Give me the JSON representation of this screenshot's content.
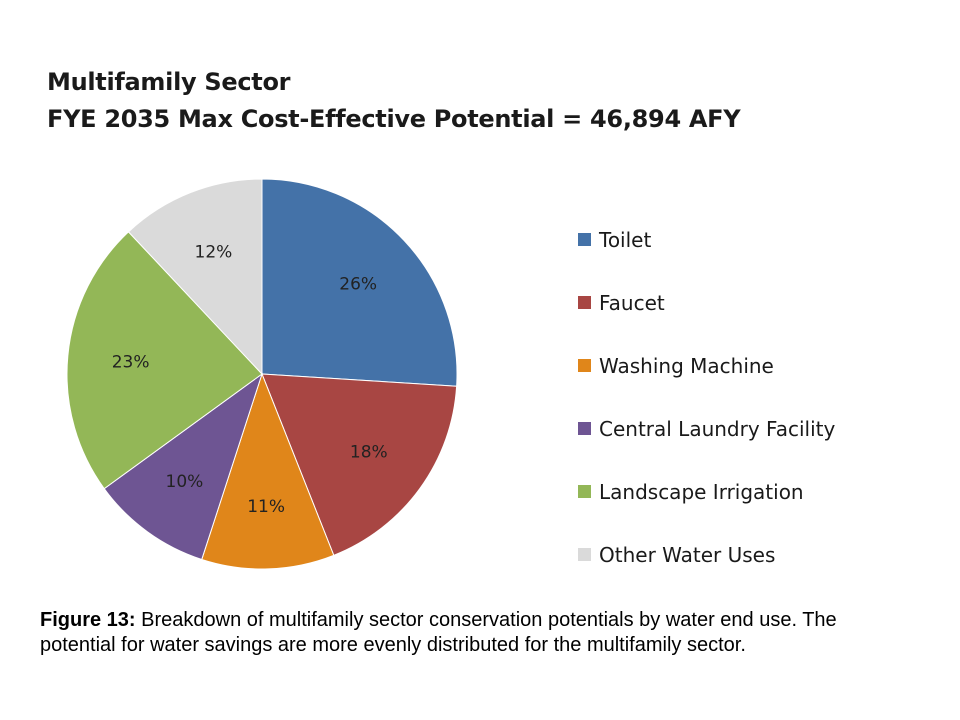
{
  "chart_data": {
    "type": "pie",
    "title": "Multifamily Sector",
    "subtitle": "FYE 2035 Max Cost-Effective Potential = 46,894 AFY",
    "categories": [
      "Toilet",
      "Faucet",
      "Washing Machine",
      "Central Laundry Facility",
      "Landscape Irrigation",
      "Other Water Uses"
    ],
    "values": [
      26,
      18,
      11,
      10,
      23,
      12
    ],
    "data_labels": [
      "26%",
      "18%",
      "11%",
      "10%",
      "23%",
      "12%"
    ],
    "colors": [
      "#4472a8",
      "#a84643",
      "#e0861a",
      "#6e5593",
      "#93b757",
      "#dadada"
    ],
    "legend_position": "right"
  },
  "caption": {
    "label": "Figure 13:",
    "text": " Breakdown of multifamily sector conservation potentials by water end use. The potential for water savings are more evenly distributed for the multifamily sector."
  }
}
